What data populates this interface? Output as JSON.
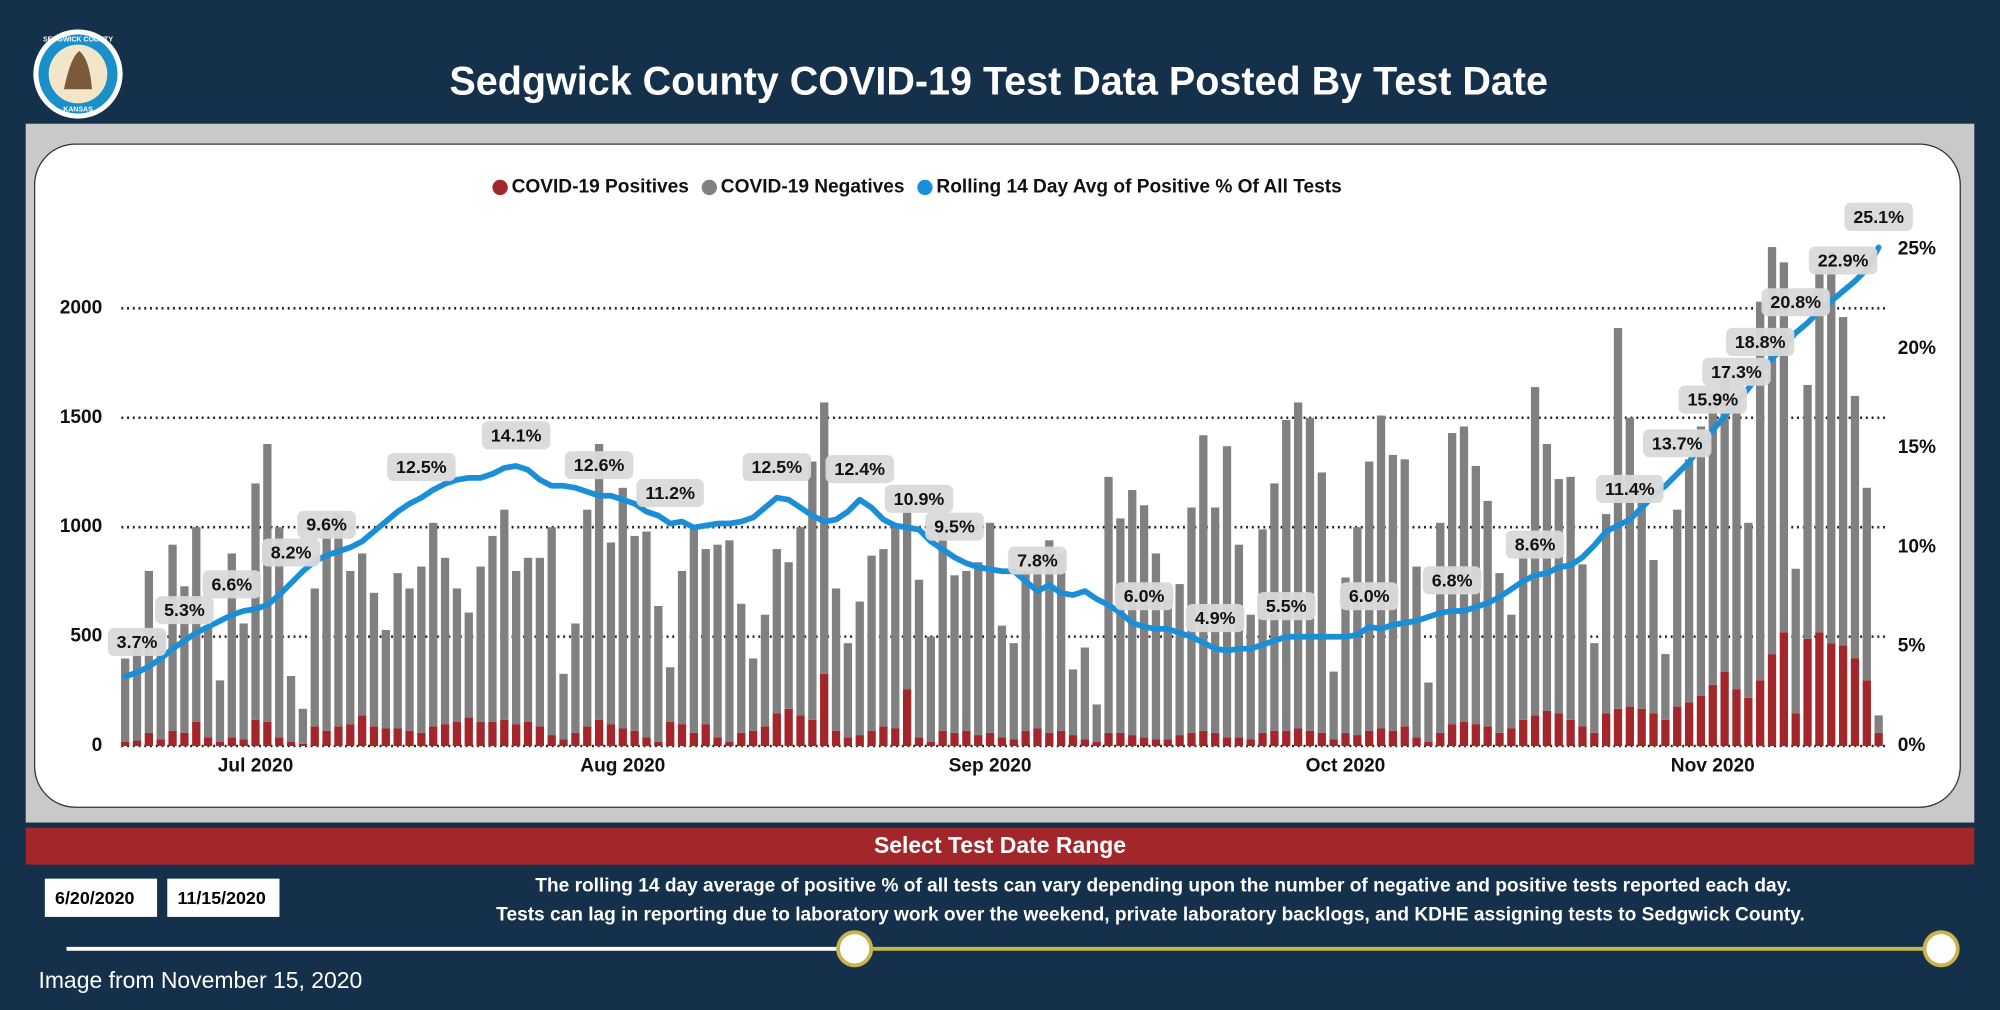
{
  "header": {
    "title": "Sedgwick County COVID-19 Test Data Posted By Test Date",
    "logo_top": "SEDGWICK COUNTY",
    "logo_bottom": "KANSAS"
  },
  "chart_data": {
    "type": "bar",
    "stacked": true,
    "categories": [
      null,
      null,
      null,
      null,
      null,
      null,
      null,
      null,
      null,
      null,
      null,
      "Jul 2020",
      null,
      null,
      null,
      null,
      null,
      null,
      null,
      null,
      null,
      null,
      null,
      null,
      null,
      null,
      null,
      null,
      null,
      null,
      null,
      null,
      null,
      null,
      null,
      null,
      null,
      null,
      null,
      null,
      null,
      null,
      "Aug 2020",
      null,
      null,
      null,
      null,
      null,
      null,
      null,
      null,
      null,
      null,
      null,
      null,
      null,
      null,
      null,
      null,
      null,
      null,
      null,
      null,
      null,
      null,
      null,
      null,
      null,
      null,
      null,
      null,
      null,
      null,
      "Sep 2020",
      null,
      null,
      null,
      null,
      null,
      null,
      null,
      null,
      null,
      null,
      null,
      null,
      null,
      null,
      null,
      null,
      null,
      null,
      null,
      null,
      null,
      null,
      null,
      null,
      null,
      null,
      null,
      null,
      null,
      "Oct 2020",
      null,
      null,
      null,
      null,
      null,
      null,
      null,
      null,
      null,
      null,
      null,
      null,
      null,
      null,
      null,
      null,
      null,
      null,
      null,
      null,
      null,
      null,
      null,
      null,
      null,
      null,
      null,
      null,
      null,
      null,
      "Nov 2020",
      null,
      null,
      null,
      null,
      null,
      null,
      null,
      null,
      null,
      null,
      null,
      null,
      null,
      null
    ],
    "series": [
      {
        "name": "COVID-19 Positives",
        "color": "#a3262a",
        "values": [
          20,
          25,
          60,
          30,
          70,
          60,
          110,
          40,
          20,
          40,
          30,
          120,
          110,
          40,
          20,
          10,
          90,
          70,
          90,
          100,
          140,
          90,
          80,
          80,
          70,
          60,
          90,
          100,
          110,
          130,
          110,
          110,
          120,
          100,
          110,
          90,
          50,
          30,
          60,
          90,
          120,
          100,
          80,
          70,
          40,
          20,
          110,
          100,
          60,
          100,
          40,
          20,
          60,
          70,
          90,
          150,
          170,
          140,
          120,
          330,
          70,
          40,
          50,
          70,
          90,
          80,
          260,
          40,
          20,
          70,
          60,
          70,
          50,
          60,
          40,
          30,
          70,
          80,
          60,
          70,
          50,
          30,
          20,
          60,
          60,
          50,
          40,
          30,
          30,
          50,
          60,
          70,
          60,
          40,
          40,
          30,
          60,
          70,
          70,
          80,
          70,
          60,
          30,
          60,
          50,
          70,
          80,
          70,
          90,
          40,
          20,
          60,
          100,
          110,
          100,
          90,
          60,
          80,
          120,
          140,
          160,
          150,
          120,
          90,
          60,
          150,
          170,
          180,
          170,
          150,
          120,
          180,
          200,
          230,
          280,
          340,
          260,
          220,
          300,
          420,
          520,
          150,
          490,
          520,
          470,
          460,
          400,
          300,
          60
        ]
      },
      {
        "name": "COVID-19 Negatives",
        "color": "#808080",
        "values": [
          380,
          425,
          740,
          490,
          850,
          670,
          890,
          510,
          280,
          840,
          530,
          1080,
          1270,
          960,
          300,
          160,
          630,
          920,
          970,
          700,
          740,
          610,
          450,
          710,
          650,
          760,
          930,
          760,
          610,
          480,
          710,
          850,
          960,
          700,
          750,
          770,
          950,
          300,
          500,
          990,
          1260,
          830,
          1100,
          890,
          940,
          620,
          250,
          700,
          940,
          800,
          880,
          920,
          590,
          330,
          510,
          750,
          670,
          860,
          1180,
          1240,
          650,
          430,
          610,
          800,
          810,
          920,
          840,
          720,
          480,
          930,
          720,
          730,
          790,
          960,
          510,
          440,
          730,
          800,
          880,
          810,
          300,
          420,
          170,
          1170,
          980,
          1120,
          1060,
          850,
          640,
          690,
          1030,
          1350,
          1030,
          1330,
          880,
          570,
          930,
          1130,
          1420,
          1490,
          1430,
          1190,
          310,
          710,
          950,
          1230,
          1430,
          1260,
          1220,
          780,
          270,
          960,
          1330,
          1350,
          1180,
          1030,
          730,
          520,
          780,
          1500,
          1220,
          1070,
          1110,
          740,
          410,
          910,
          1740,
          1320,
          1030,
          700,
          300,
          900,
          1110,
          1230,
          1330,
          1350,
          1300,
          800,
          1730,
          1860,
          1690,
          660,
          1160,
          1660,
          1790,
          1500,
          1200,
          880,
          80
        ]
      },
      {
        "name": "Rolling 14 Day Avg of Positive % Of All Tests",
        "color": "#1a8fd8",
        "type": "line",
        "axis": "y2",
        "values": [
          3.5,
          3.7,
          4.0,
          4.4,
          4.9,
          5.3,
          5.7,
          6.0,
          6.3,
          6.6,
          6.8,
          6.9,
          7.1,
          7.6,
          8.2,
          8.8,
          9.3,
          9.6,
          9.8,
          10.0,
          10.3,
          10.8,
          11.3,
          11.8,
          12.2,
          12.5,
          12.9,
          13.2,
          13.4,
          13.5,
          13.5,
          13.7,
          14.0,
          14.1,
          13.9,
          13.4,
          13.1,
          13.1,
          13.0,
          12.8,
          12.6,
          12.6,
          12.4,
          12.2,
          11.8,
          11.6,
          11.2,
          11.3,
          11.0,
          11.1,
          11.2,
          11.2,
          11.3,
          11.5,
          12.0,
          12.5,
          12.4,
          12.0,
          11.6,
          11.3,
          11.4,
          11.8,
          12.4,
          12.0,
          11.4,
          11.1,
          11.0,
          10.9,
          10.3,
          9.9,
          9.5,
          9.2,
          9.0,
          8.9,
          8.8,
          8.8,
          8.3,
          7.8,
          8.1,
          7.7,
          7.6,
          7.8,
          7.4,
          7.1,
          6.7,
          6.2,
          6.0,
          5.9,
          5.9,
          5.7,
          5.5,
          5.2,
          4.9,
          4.8,
          4.9,
          4.9,
          5.1,
          5.3,
          5.5,
          5.5,
          5.5,
          5.5,
          5.5,
          5.5,
          5.6,
          6.0,
          5.9,
          6.1,
          6.2,
          6.3,
          6.5,
          6.7,
          6.8,
          6.8,
          7.0,
          7.2,
          7.5,
          7.9,
          8.3,
          8.6,
          8.7,
          9.0,
          9.1,
          9.5,
          10.1,
          10.8,
          11.1,
          11.4,
          12.0,
          12.6,
          13.1,
          13.7,
          14.3,
          15.1,
          15.9,
          16.6,
          17.3,
          18.0,
          18.8,
          19.5,
          20.1,
          20.8,
          21.3,
          21.9,
          22.4,
          22.9,
          23.4,
          24.0,
          25.1
        ],
        "value_labels": [
          null,
          "3.7%",
          null,
          null,
          null,
          "5.3%",
          null,
          null,
          null,
          "6.6%",
          null,
          null,
          null,
          null,
          "8.2%",
          null,
          null,
          "9.6%",
          null,
          null,
          null,
          null,
          null,
          null,
          null,
          "12.5%",
          null,
          null,
          null,
          null,
          null,
          null,
          null,
          "14.1%",
          null,
          null,
          null,
          null,
          null,
          null,
          "12.6%",
          null,
          null,
          null,
          null,
          null,
          "11.2%",
          null,
          null,
          null,
          null,
          null,
          null,
          null,
          null,
          "12.5%",
          null,
          null,
          null,
          null,
          null,
          null,
          "12.4%",
          null,
          null,
          null,
          null,
          "10.9%",
          null,
          null,
          "9.5%",
          null,
          null,
          null,
          null,
          null,
          null,
          "7.8%",
          null,
          null,
          null,
          null,
          null,
          null,
          null,
          null,
          "6.0%",
          null,
          null,
          null,
          null,
          null,
          "4.9%",
          null,
          null,
          null,
          null,
          null,
          "5.5%",
          null,
          null,
          null,
          null,
          null,
          null,
          "6.0%",
          null,
          null,
          null,
          null,
          null,
          null,
          "6.8%",
          null,
          null,
          null,
          null,
          null,
          null,
          "8.6%",
          null,
          null,
          null,
          null,
          null,
          null,
          null,
          "11.4%",
          null,
          null,
          null,
          "13.7%",
          null,
          null,
          "15.9%",
          null,
          "17.3%",
          null,
          "18.8%",
          null,
          null,
          "20.8%",
          null,
          null,
          null,
          "22.9%",
          null,
          null,
          "25.1%"
        ]
      }
    ],
    "ylim": [
      0,
      2360
    ],
    "yticks": [
      0,
      500,
      1000,
      1500,
      2000
    ],
    "y2lim": [
      0,
      26
    ],
    "y2ticks": [
      {
        "value": 0,
        "label": "0%"
      },
      {
        "value": 5,
        "label": "5%"
      },
      {
        "value": 10,
        "label": "10%"
      },
      {
        "value": 15,
        "label": "15%"
      },
      {
        "value": 20,
        "label": "20%"
      },
      {
        "value": 25,
        "label": "25%"
      }
    ],
    "grid": true,
    "legend": "top"
  },
  "controls": {
    "section_title": "Select Test Date Range",
    "start_date": "6/20/2020",
    "end_date": "11/15/2020",
    "notes": [
      "The rolling 14 day average of positive % of all tests can vary depending upon the number of negative and positive tests reported each day.",
      "Tests can lag in reporting due to laboratory work over the weekend, private laboratory backlogs, and KDHE assigning tests to Sedgwick County."
    ],
    "caption": "Image from November 15, 2020"
  }
}
